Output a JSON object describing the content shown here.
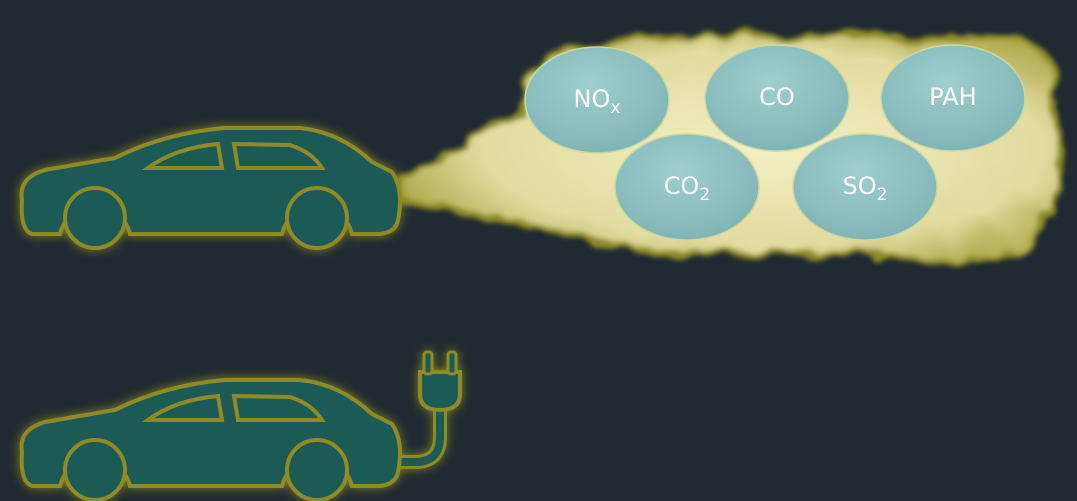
{
  "bubbles": [
    {
      "main": "NO",
      "sub": "x"
    },
    {
      "main": "CO"
    },
    {
      "main": "PAH"
    },
    {
      "main": "CO",
      "sub": "2"
    },
    {
      "main": "SO",
      "sub": "2"
    }
  ]
}
